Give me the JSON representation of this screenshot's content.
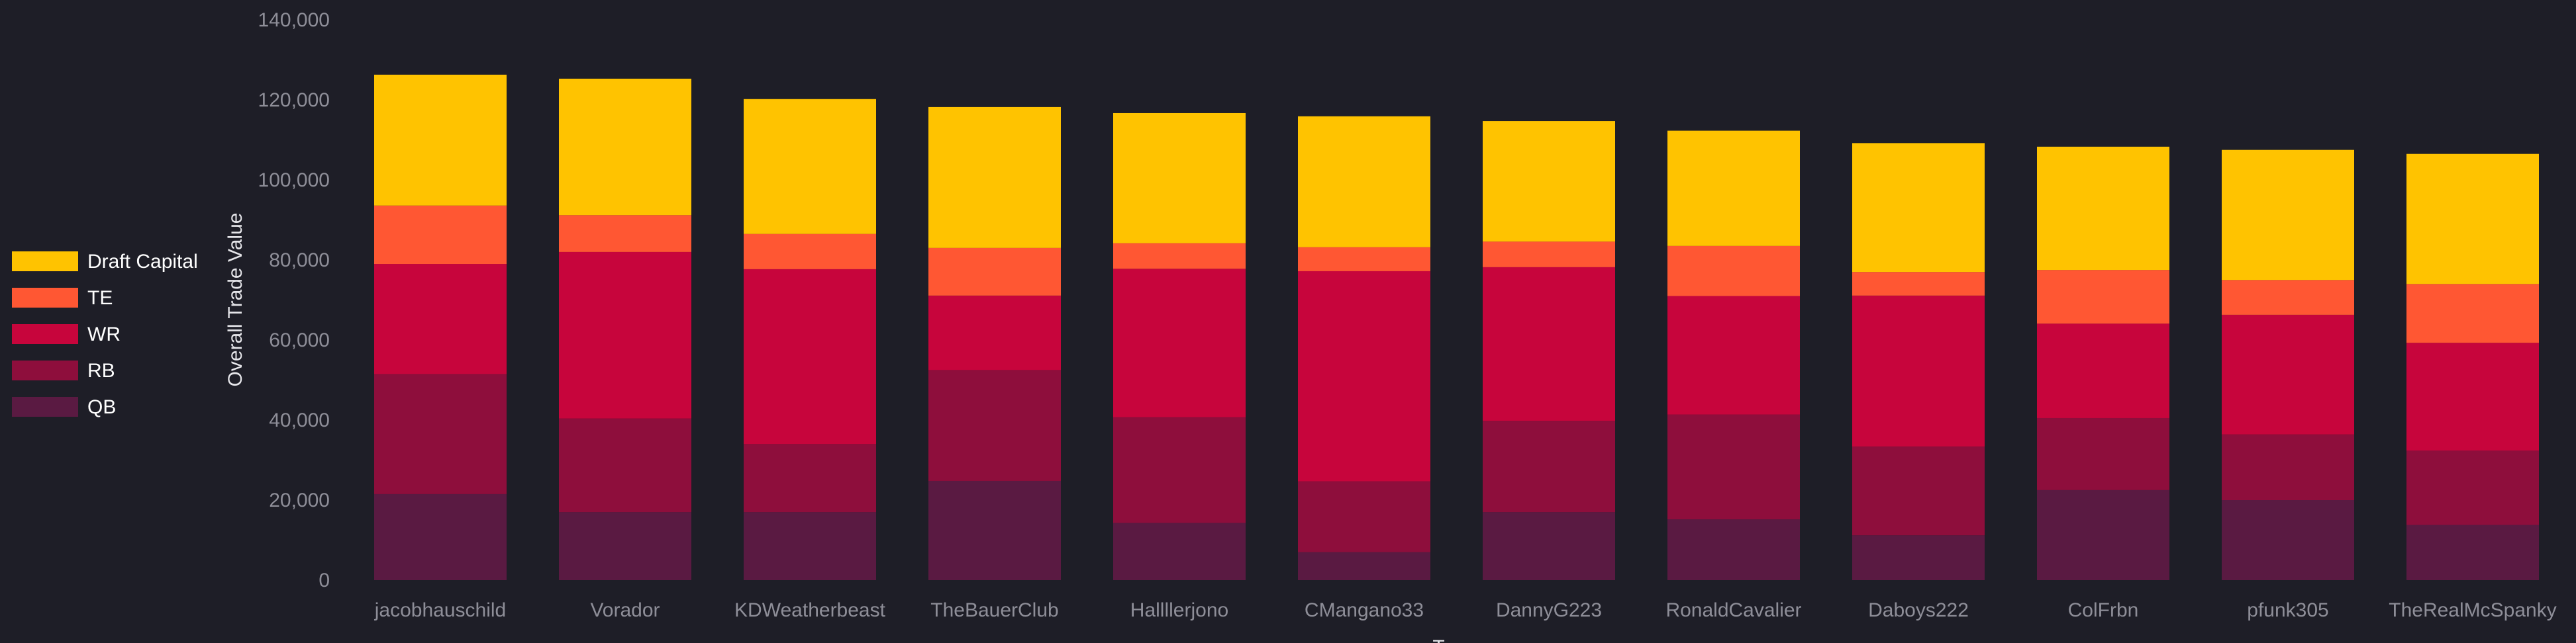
{
  "chart_data": {
    "type": "bar",
    "stacked": true,
    "categories": [
      "jacobhauschild",
      "Vorador",
      "KDWeatherbeast",
      "TheBauerClub",
      "Hallllerjono",
      "CMangano33",
      "DannyG223",
      "RonaldCavalier",
      "Daboys222",
      "ColFrbn",
      "pfunk305",
      "TheRealMcSpanky"
    ],
    "series": [
      {
        "name": "QB",
        "color": "#5a1a42",
        "values": [
          21500,
          17000,
          17000,
          24800,
          14300,
          7000,
          17000,
          15200,
          11200,
          22500,
          20000,
          13800
        ]
      },
      {
        "name": "RB",
        "color": "#8e0e3c",
        "values": [
          30000,
          23400,
          17000,
          27700,
          26400,
          17700,
          22800,
          26200,
          22200,
          18000,
          16400,
          18600
        ]
      },
      {
        "name": "WR",
        "color": "#c7053c",
        "values": [
          27500,
          41600,
          43700,
          18600,
          37100,
          52500,
          38400,
          29600,
          37700,
          23600,
          29900,
          26900
        ]
      },
      {
        "name": "TE",
        "color": "#ff5733",
        "values": [
          14600,
          9200,
          8800,
          11900,
          6400,
          6000,
          6400,
          12500,
          5900,
          13400,
          8700,
          14700
        ]
      },
      {
        "name": "Draft Capital",
        "color": "#ffc300",
        "values": [
          32700,
          34100,
          33700,
          35200,
          32500,
          32700,
          30100,
          28800,
          32200,
          30800,
          32500,
          32500
        ]
      }
    ],
    "legend_order": [
      "Draft Capital",
      "TE",
      "WR",
      "RB",
      "QB"
    ],
    "ylim": [
      0,
      140000
    ],
    "yticks": [
      0,
      20000,
      40000,
      60000,
      80000,
      100000,
      120000,
      140000
    ],
    "ytick_labels": [
      "0",
      "20,000",
      "40,000",
      "60,000",
      "80,000",
      "100,000",
      "120,000",
      "140,000"
    ],
    "ylabel": "Overall Trade Value",
    "xlabel": "Team",
    "grid": false,
    "legend_position": "left"
  }
}
